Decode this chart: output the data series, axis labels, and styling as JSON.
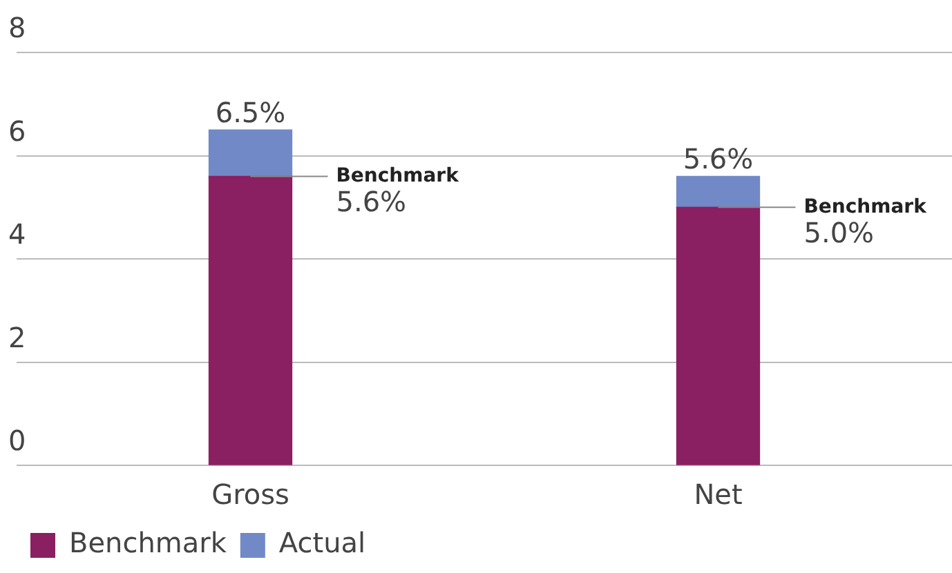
{
  "chart_data": {
    "type": "bar",
    "stacked": true,
    "categories": [
      "Gross",
      "Net"
    ],
    "series": [
      {
        "name": "Benchmark",
        "color": "#8a1f62",
        "values": [
          5.6,
          5.0
        ],
        "value_labels": [
          "5.6%",
          "5.0%"
        ]
      },
      {
        "name": "Actual",
        "color": "#7189c6",
        "values": [
          0.9,
          0.6
        ]
      }
    ],
    "totals": [
      "6.5%",
      "5.6%"
    ],
    "annotations": [
      {
        "text": "Benchmark",
        "x": "Gross",
        "y": 5.6
      },
      {
        "text": "Benchmark",
        "x": "Net",
        "y": 5.0
      }
    ],
    "ylim": [
      0,
      8
    ],
    "yticks": [
      0,
      2,
      4,
      6,
      8
    ],
    "grid": "y",
    "legend": "bottom left"
  }
}
